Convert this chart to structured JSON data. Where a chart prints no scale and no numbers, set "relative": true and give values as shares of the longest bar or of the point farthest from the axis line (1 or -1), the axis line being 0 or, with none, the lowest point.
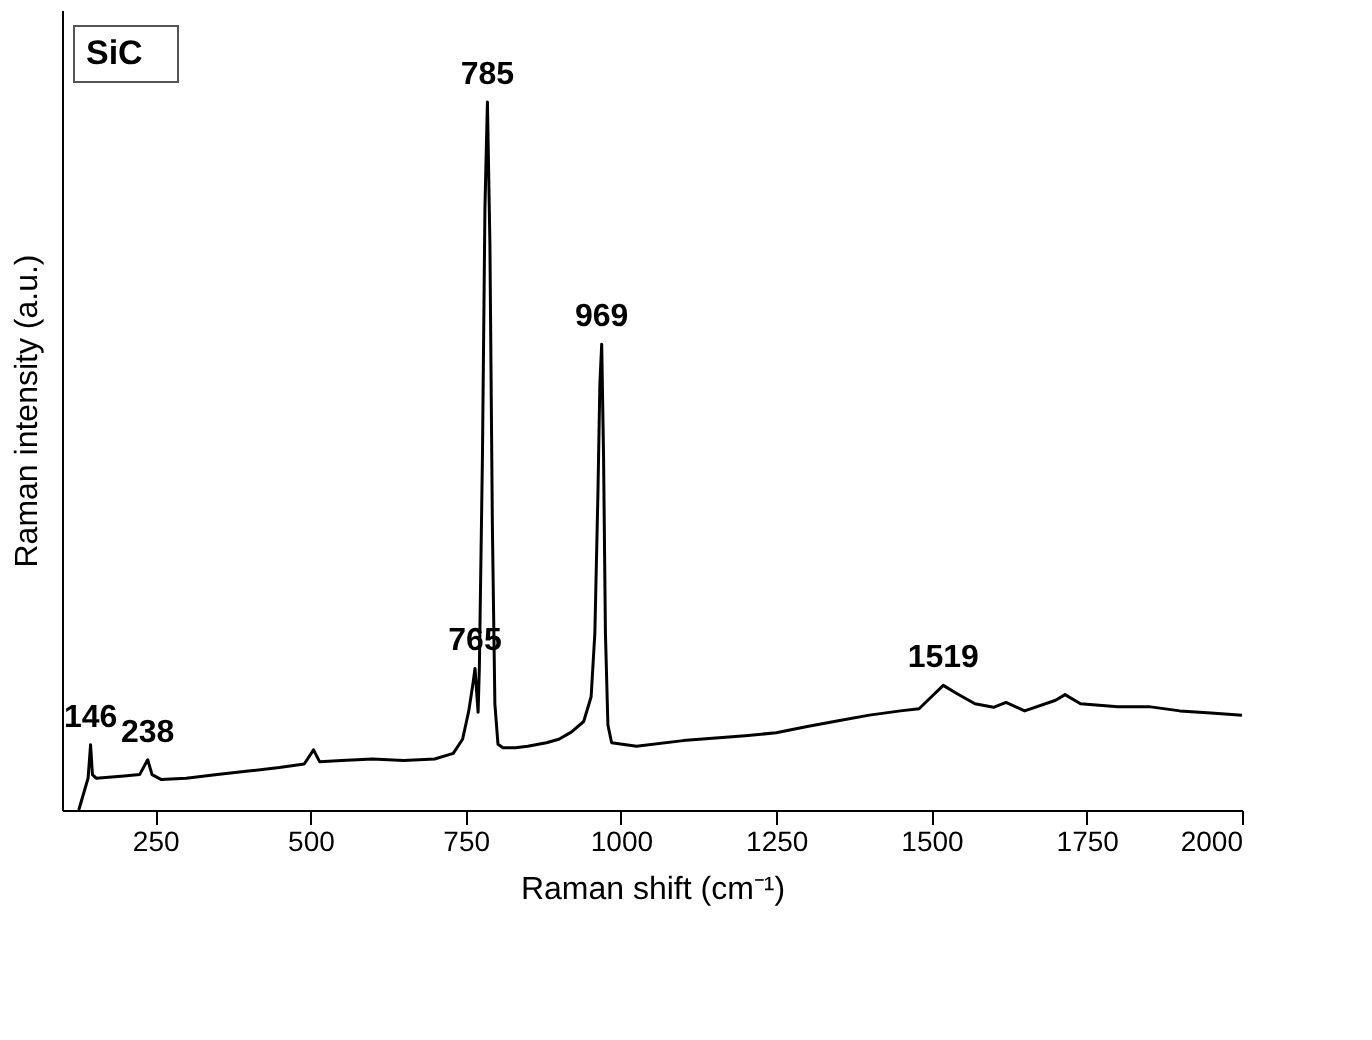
{
  "chart_data": {
    "type": "line",
    "xlabel": "Raman shift (cm⁻¹)",
    "ylabel": "Raman intensity (a.u.)",
    "relative": true,
    "xlim": [
      100,
      2000
    ],
    "xticks": [
      250,
      500,
      750,
      1000,
      1250,
      1500,
      1750,
      2000
    ],
    "grid": false,
    "marker": "none",
    "line_style": "solid",
    "x": [
      127,
      137,
      142,
      146,
      149,
      155,
      200,
      225,
      238,
      245,
      260,
      300,
      350,
      400,
      450,
      490,
      505,
      515,
      550,
      600,
      650,
      700,
      730,
      745,
      755,
      762,
      765,
      770,
      772,
      777,
      781,
      785,
      789,
      793,
      797,
      802,
      810,
      830,
      850,
      880,
      900,
      920,
      940,
      952,
      958,
      963,
      966,
      969,
      972,
      975,
      979,
      985,
      1025,
      1100,
      1200,
      1250,
      1300,
      1350,
      1400,
      1450,
      1480,
      1500,
      1519,
      1540,
      1570,
      1600,
      1620,
      1650,
      1700,
      1715,
      1740,
      1800,
      1850,
      1900,
      1950,
      2000
    ],
    "series": [
      {
        "color": "#000000",
        "values": [
          0.0,
          0.03,
          0.045,
          0.092,
          0.05,
          0.045,
          0.048,
          0.05,
          0.071,
          0.05,
          0.043,
          0.045,
          0.05,
          0.055,
          0.06,
          0.065,
          0.085,
          0.068,
          0.07,
          0.072,
          0.07,
          0.072,
          0.08,
          0.1,
          0.14,
          0.18,
          0.2,
          0.138,
          0.2,
          0.5,
          0.85,
          1.0,
          0.8,
          0.4,
          0.15,
          0.093,
          0.088,
          0.088,
          0.09,
          0.095,
          0.1,
          0.11,
          0.125,
          0.16,
          0.25,
          0.45,
          0.6,
          0.658,
          0.5,
          0.25,
          0.12,
          0.095,
          0.09,
          0.098,
          0.105,
          0.109,
          0.118,
          0.126,
          0.134,
          0.14,
          0.143,
          0.16,
          0.176,
          0.165,
          0.15,
          0.145,
          0.152,
          0.14,
          0.155,
          0.163,
          0.15,
          0.146,
          0.146,
          0.14,
          0.137,
          0.134
        ]
      }
    ],
    "annotations": [
      "SiC",
      {
        "text": "146",
        "x": 146,
        "y": 0.092
      },
      {
        "text": "238",
        "x": 238,
        "y": 0.071
      },
      {
        "text": "765",
        "x": 765,
        "y": 0.2
      },
      {
        "text": "785",
        "x": 785,
        "y": 1.0
      },
      {
        "text": "969",
        "x": 969,
        "y": 0.658
      },
      {
        "text": "1519",
        "x": 1519,
        "y": 0.176
      }
    ]
  }
}
